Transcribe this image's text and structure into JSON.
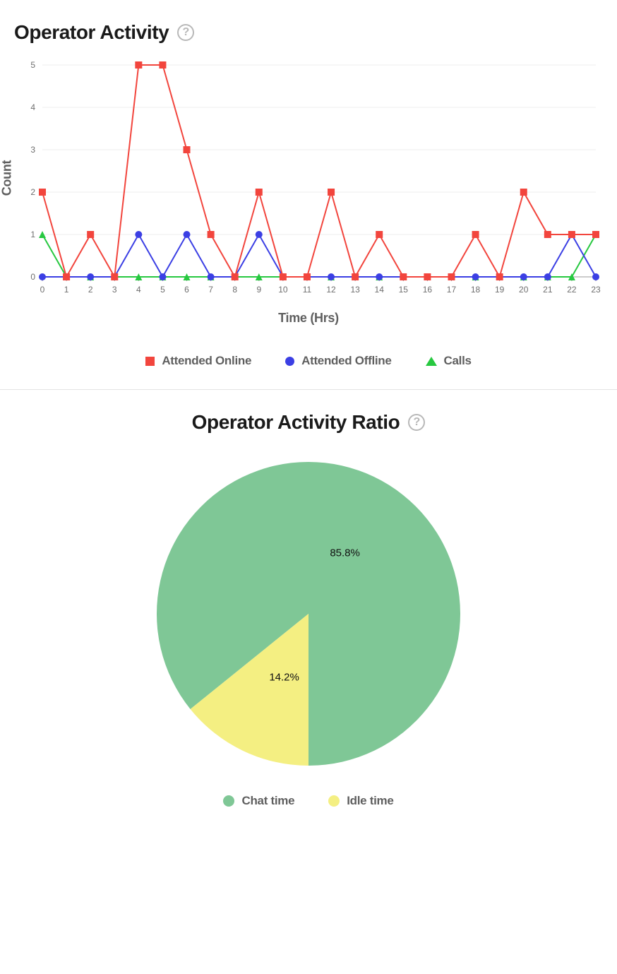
{
  "line_chart": {
    "type": "line",
    "title": "Operator Activity",
    "x_axis_label": "Time (Hrs)",
    "y_axis_label": "Count",
    "x_values": [
      0,
      1,
      2,
      3,
      4,
      5,
      6,
      7,
      8,
      9,
      10,
      11,
      12,
      13,
      14,
      15,
      16,
      17,
      18,
      19,
      20,
      21,
      22,
      23
    ],
    "ylim": [
      0,
      5
    ],
    "ytick_step": 1,
    "tick_fontsize": 12,
    "tick_color": "#6e6e6e",
    "axis_label_fontsize": 18,
    "axis_label_color": "#5f5f5f",
    "grid_color": "#ececec",
    "axis_line_color": "#9a9a9a",
    "background_color": "#ffffff",
    "line_width": 2,
    "marker_size": 10,
    "series": [
      {
        "name": "Calls",
        "color": "#27c840",
        "marker": "triangle",
        "values": [
          1,
          0,
          0,
          0,
          0,
          0,
          0,
          0,
          0,
          0,
          0,
          0,
          0,
          0,
          0,
          0,
          0,
          0,
          0,
          0,
          0,
          0,
          0,
          1
        ]
      },
      {
        "name": "Attended Offline",
        "color": "#3b3fe4",
        "marker": "circle",
        "values": [
          0,
          0,
          0,
          0,
          1,
          0,
          1,
          0,
          0,
          1,
          0,
          0,
          0,
          0,
          0,
          0,
          0,
          0,
          0,
          0,
          0,
          0,
          1,
          0
        ]
      },
      {
        "name": "Attended Online",
        "color": "#f2453d",
        "marker": "square",
        "values": [
          2,
          0,
          1,
          0,
          5,
          5,
          3,
          1,
          0,
          2,
          0,
          0,
          2,
          0,
          1,
          0,
          0,
          0,
          1,
          0,
          2,
          1,
          1,
          1
        ]
      }
    ],
    "legend_order": [
      "Attended Online",
      "Attended Offline",
      "Calls"
    ]
  },
  "pie_chart": {
    "type": "pie",
    "title": "Operator Activity Ratio",
    "radius": 215,
    "label_fontsize": 15,
    "background_color": "#ffffff",
    "start_at_bottom": true,
    "slices": [
      {
        "name": "Chat time",
        "value": 85.8,
        "label": "85.8%",
        "color": "#7fc796"
      },
      {
        "name": "Idle time",
        "value": 14.2,
        "label": "14.2%",
        "color": "#f4ef82"
      }
    ],
    "legend_marker": "circle"
  }
}
